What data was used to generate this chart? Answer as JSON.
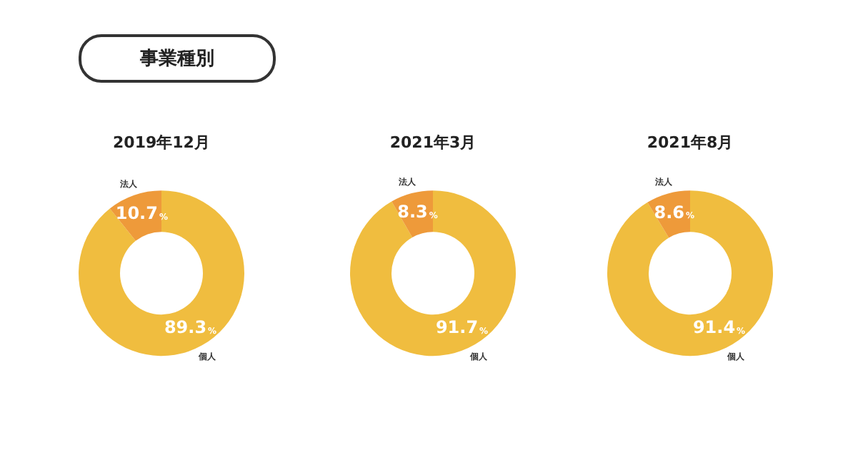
{
  "chart_data": [
    {
      "type": "other",
      "title": "事業種別"
    },
    {
      "type": "donut",
      "title": "2019年12月",
      "categories": [
        "個人",
        "法人"
      ],
      "values": [
        89.3,
        10.7
      ],
      "colors": [
        "#f0bd3f",
        "#ee9a3a"
      ],
      "value_labels": [
        "89.3%",
        "10.7%"
      ]
    },
    {
      "type": "donut",
      "title": "2021年3月",
      "categories": [
        "個人",
        "法人"
      ],
      "values": [
        91.7,
        8.3
      ],
      "colors": [
        "#f0bd3f",
        "#ee9a3a"
      ],
      "value_labels": [
        "91.7%",
        "8.3%"
      ]
    },
    {
      "type": "donut",
      "title": "2021年8月",
      "categories": [
        "個人",
        "法人"
      ],
      "values": [
        91.4,
        8.6
      ],
      "colors": [
        "#f0bd3f",
        "#ee9a3a"
      ],
      "value_labels": [
        "91.4%",
        "8.6%"
      ]
    }
  ]
}
